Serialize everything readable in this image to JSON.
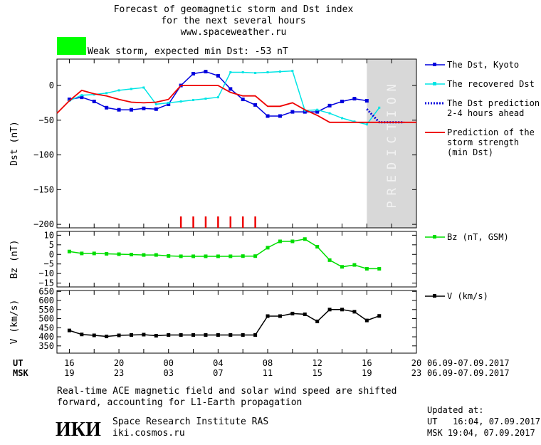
{
  "header": {
    "title_lines": [
      "Forecast of geomagnetic storm and Dst index",
      "for the next several hours",
      "www.spaceweather.ru"
    ],
    "storm_label": "Weak storm, expected min Dst: -53 nT",
    "storm_color": "#00ff00"
  },
  "chart_data": [
    {
      "type": "line",
      "ylabel": "Dst (nT)",
      "ylim": [
        -205,
        38
      ],
      "yticks": [
        0,
        -50,
        -100,
        -150,
        -200
      ],
      "prediction_label": "PREDICTION",
      "series": [
        {
          "name": "The Dst, Kyoto",
          "color": "#0000dd",
          "x": [
            0,
            1,
            2,
            3,
            4,
            5,
            6,
            7,
            8,
            9,
            10,
            11,
            12,
            13,
            14,
            15,
            16,
            17,
            18,
            19,
            20,
            21,
            22,
            23,
            24
          ],
          "y": [
            -20,
            -17,
            -23,
            -32,
            -35,
            -35,
            -33,
            -34,
            -27,
            0,
            17,
            20,
            14,
            -5,
            -20,
            -28,
            -44,
            -44,
            -38,
            -38,
            -38,
            -29,
            -23,
            -19,
            -22
          ]
        },
        {
          "name": "The recovered Dst",
          "color": "#00e5e5",
          "x": [
            0,
            1,
            2,
            3,
            4,
            5,
            6,
            7,
            8,
            9,
            10,
            11,
            12,
            13,
            14,
            15,
            16,
            17,
            18,
            19,
            20,
            21,
            22,
            23,
            24,
            25
          ],
          "y": [
            -22,
            -14,
            -13,
            -11,
            -7,
            -5,
            -3,
            -27,
            -25,
            -23,
            -21,
            -19,
            -17,
            19,
            19,
            18,
            19,
            20,
            21,
            -36,
            -35,
            -40,
            -47,
            -52,
            -56,
            -32
          ]
        },
        {
          "name": "The Dst prediction\n2-4 hours ahead",
          "color": "#0000dd",
          "x": [
            24,
            25,
            26,
            27
          ],
          "y": [
            -34,
            -53,
            -53,
            -53
          ]
        },
        {
          "name": "Prediction of the\nstorm strength\n(min Dst)",
          "color": "#ee0000",
          "x": [
            -1,
            0,
            1,
            2,
            3,
            4,
            5,
            6,
            7,
            8,
            9,
            10,
            11,
            12,
            13,
            14,
            15,
            16,
            17,
            18,
            19,
            20,
            21,
            22,
            23,
            24,
            25,
            26,
            27,
            28
          ],
          "y": [
            -40,
            -22,
            -7,
            -12,
            -15,
            -20,
            -24,
            -25,
            -24,
            -20,
            0,
            0,
            0,
            0,
            -10,
            -15,
            -15,
            -30,
            -30,
            -25,
            -35,
            -43,
            -53,
            -53,
            -53,
            -53,
            -53,
            -53,
            -53,
            -53
          ]
        }
      ],
      "storm_markers_x": [
        9,
        10,
        11,
        12,
        13,
        14,
        15
      ]
    },
    {
      "type": "line",
      "ylabel": "Bz (nT)",
      "ylim": [
        -17,
        12
      ],
      "yticks": [
        10,
        5,
        0,
        -5,
        -10,
        -15
      ],
      "series": [
        {
          "name": "Bz (nT, GSM)",
          "color": "#00dd00",
          "x": [
            0,
            1,
            2,
            3,
            4,
            5,
            6,
            7,
            8,
            9,
            10,
            11,
            12,
            13,
            14,
            15,
            16,
            17,
            18,
            19,
            20,
            21,
            22,
            23,
            24,
            25
          ],
          "y": [
            1.5,
            0.5,
            0.5,
            0.3,
            0.1,
            -0.1,
            -0.3,
            -0.3,
            -0.8,
            -1,
            -1,
            -1,
            -1,
            -1,
            -0.9,
            -0.9,
            3.5,
            6.8,
            6.8,
            8,
            4,
            -3,
            -6.5,
            -5.5,
            -7.5,
            -7.5
          ]
        }
      ]
    },
    {
      "type": "line",
      "ylabel": "V (km/s)",
      "ylim": [
        310,
        655
      ],
      "yticks": [
        650,
        600,
        550,
        500,
        450,
        400,
        350
      ],
      "series": [
        {
          "name": "V (km/s)",
          "color": "#000000",
          "x": [
            0,
            1,
            2,
            3,
            4,
            5,
            6,
            7,
            8,
            9,
            10,
            11,
            12,
            13,
            14,
            15,
            16,
            17,
            18,
            19,
            20,
            21,
            22,
            23,
            24,
            25
          ],
          "y": [
            435,
            413,
            408,
            402,
            408,
            410,
            412,
            406,
            410,
            410,
            410,
            410,
            410,
            410,
            410,
            410,
            514,
            514,
            528,
            524,
            485,
            550,
            550,
            538,
            490,
            515
          ]
        }
      ]
    }
  ],
  "x_axis": {
    "ut_label": "UT",
    "msk_label": "MSK",
    "ut_ticks": [
      "16",
      "20",
      "00",
      "04",
      "08",
      "12",
      "16",
      "20"
    ],
    "msk_ticks": [
      "19",
      "23",
      "03",
      "07",
      "11",
      "15",
      "19",
      "23"
    ],
    "date_range": "06.09-07.09.2017",
    "prediction_start": 24,
    "xlim": [
      -1,
      28
    ]
  },
  "footer": {
    "note_lines": [
      "Real-time ACE magnetic field and solar wind speed are shifted",
      "forward, accounting for L1-Earth propagation"
    ],
    "logo": "ИКИ",
    "institute": "Space Research Institute RAS",
    "site": "iki.cosmos.ru",
    "updated_label": "Updated at:",
    "updated_ut": "UT   16:04, 07.09.2017",
    "updated_msk": "MSK 19:04, 07.09.2017"
  }
}
